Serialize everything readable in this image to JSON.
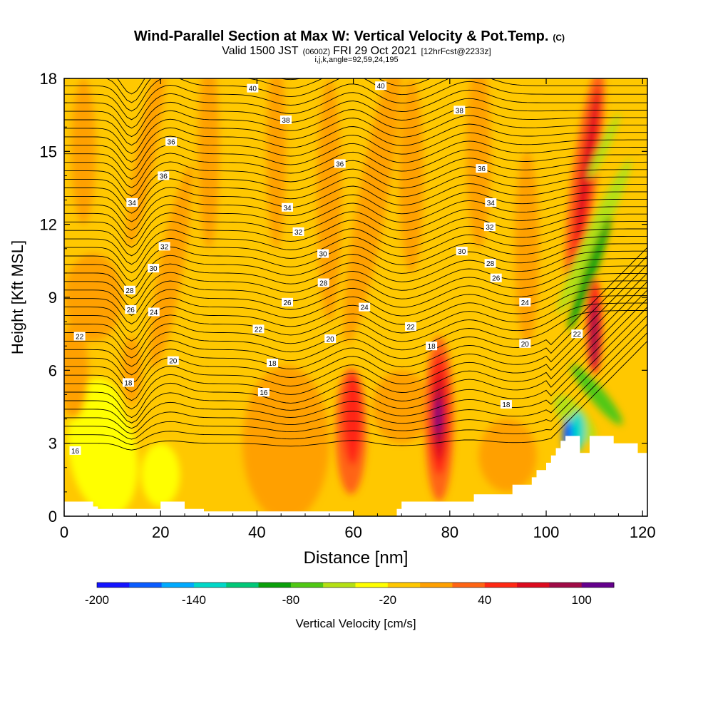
{
  "chart_data": {
    "type": "heatmap",
    "title": "Wind-Parallel Section at Max W: Vertical Velocity & Pot.Temp.",
    "title_unit": "(C)",
    "subtitle": {
      "valid": "Valid 1500 JST",
      "utc": "(0600Z)",
      "date": "FRI 29 Oct 2021",
      "fcst": "[12hrFcst@2233z]",
      "indices": "i,j,k,angle=92,59,24,195"
    },
    "xlabel": "Distance [nm]",
    "ylabel": "Height [Kft MSL]",
    "xlim": [
      0,
      121
    ],
    "ylim": [
      0,
      18
    ],
    "x_ticks": [
      0,
      20,
      40,
      60,
      80,
      100,
      120
    ],
    "y_ticks": [
      0,
      3,
      6,
      9,
      12,
      15,
      18
    ],
    "grid": false,
    "colorbar": {
      "label": "Vertical Velocity [cm/s]",
      "levels": [
        -200,
        -180,
        -160,
        -140,
        -120,
        -100,
        -80,
        -60,
        -40,
        -20,
        0,
        20,
        40,
        60,
        80,
        100,
        120
      ],
      "tick_labels": [
        -200,
        -140,
        -80,
        -20,
        40,
        100
      ],
      "colors": [
        "#1414ff",
        "#0a5cff",
        "#00aaff",
        "#00d8c8",
        "#00c878",
        "#0aa00a",
        "#50c814",
        "#b4e014",
        "#ffff00",
        "#ffc800",
        "#ffa000",
        "#ff6414",
        "#ff2814",
        "#dc0a1e",
        "#a00a46",
        "#64008c"
      ]
    },
    "theta_labels": [
      {
        "x": 39.1,
        "y": 17.6,
        "text": "40"
      },
      {
        "x": 65.7,
        "y": 17.7,
        "text": "40"
      },
      {
        "x": 46.0,
        "y": 16.3,
        "text": "38"
      },
      {
        "x": 82.0,
        "y": 16.7,
        "text": "38"
      },
      {
        "x": 22.2,
        "y": 15.4,
        "text": "36"
      },
      {
        "x": 57.2,
        "y": 14.5,
        "text": "36"
      },
      {
        "x": 86.6,
        "y": 14.3,
        "text": "36"
      },
      {
        "x": 20.6,
        "y": 14.0,
        "text": "36"
      },
      {
        "x": 14.1,
        "y": 12.9,
        "text": "34"
      },
      {
        "x": 46.3,
        "y": 12.7,
        "text": "34"
      },
      {
        "x": 88.5,
        "y": 12.9,
        "text": "34"
      },
      {
        "x": 48.6,
        "y": 11.7,
        "text": "32"
      },
      {
        "x": 88.3,
        "y": 11.9,
        "text": "32"
      },
      {
        "x": 20.8,
        "y": 11.1,
        "text": "32"
      },
      {
        "x": 18.5,
        "y": 10.2,
        "text": "30"
      },
      {
        "x": 53.7,
        "y": 10.8,
        "text": "30"
      },
      {
        "x": 82.5,
        "y": 10.9,
        "text": "30"
      },
      {
        "x": 88.4,
        "y": 10.4,
        "text": "28"
      },
      {
        "x": 13.6,
        "y": 9.3,
        "text": "28"
      },
      {
        "x": 53.8,
        "y": 9.6,
        "text": "28"
      },
      {
        "x": 89.6,
        "y": 9.8,
        "text": "26"
      },
      {
        "x": 13.8,
        "y": 8.5,
        "text": "26"
      },
      {
        "x": 46.3,
        "y": 8.8,
        "text": "26"
      },
      {
        "x": 18.6,
        "y": 8.4,
        "text": "24"
      },
      {
        "x": 62.3,
        "y": 8.6,
        "text": "24"
      },
      {
        "x": 95.6,
        "y": 8.8,
        "text": "24"
      },
      {
        "x": 3.2,
        "y": 7.4,
        "text": "22"
      },
      {
        "x": 40.3,
        "y": 7.7,
        "text": "22"
      },
      {
        "x": 71.9,
        "y": 7.8,
        "text": "22"
      },
      {
        "x": 106.4,
        "y": 7.5,
        "text": "22"
      },
      {
        "x": 22.6,
        "y": 6.4,
        "text": "20"
      },
      {
        "x": 55.2,
        "y": 7.3,
        "text": "20"
      },
      {
        "x": 95.6,
        "y": 7.1,
        "text": "20"
      },
      {
        "x": 13.3,
        "y": 5.5,
        "text": "18"
      },
      {
        "x": 43.2,
        "y": 6.3,
        "text": "18"
      },
      {
        "x": 76.2,
        "y": 7.0,
        "text": "18"
      },
      {
        "x": 91.7,
        "y": 4.6,
        "text": "18"
      },
      {
        "x": 41.4,
        "y": 5.1,
        "text": "16"
      },
      {
        "x": 2.3,
        "y": 2.7,
        "text": "16"
      }
    ]
  }
}
